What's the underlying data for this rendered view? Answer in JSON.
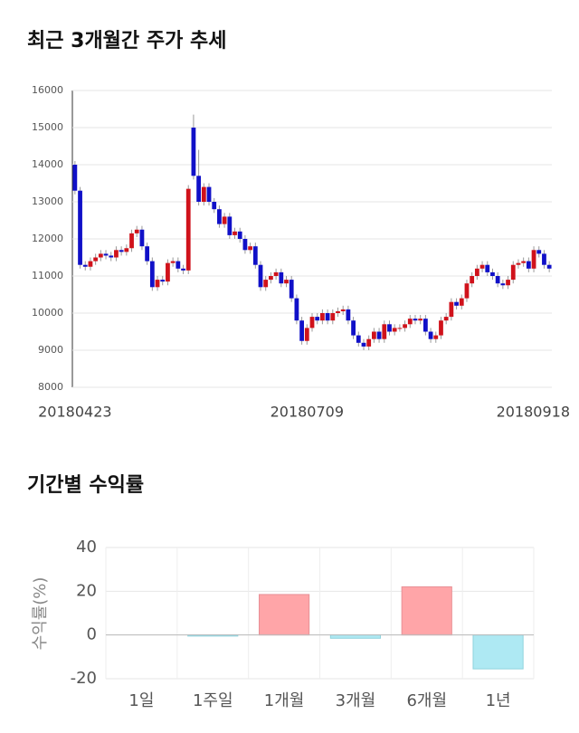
{
  "chart_data": [
    {
      "type": "candlestick",
      "title": "최근 3개월간 주가 추세",
      "categories": [
        "20180423",
        null,
        null,
        null,
        null,
        null,
        null,
        null,
        null,
        null,
        null,
        null,
        null,
        null,
        null,
        null,
        null,
        null,
        null,
        null,
        null,
        null,
        null,
        null,
        null,
        null,
        null,
        null,
        null,
        null,
        null,
        null,
        null,
        null,
        null,
        null,
        null,
        null,
        null,
        null,
        null,
        null,
        null,
        null,
        null,
        "20180709",
        null,
        null,
        null,
        null,
        null,
        null,
        null,
        null,
        null,
        null,
        null,
        null,
        null,
        null,
        null,
        null,
        null,
        null,
        null,
        null,
        null,
        null,
        null,
        null,
        null,
        null,
        null,
        null,
        null,
        null,
        null,
        null,
        null,
        null,
        null,
        null,
        null,
        null,
        null,
        null,
        null,
        null,
        null,
        null,
        null,
        null,
        "20180918"
      ],
      "open": [
        14000,
        13300,
        11300,
        11250,
        11400,
        11500,
        11600,
        11550,
        11500,
        11700,
        11650,
        11750,
        12150,
        12250,
        11800,
        11400,
        10700,
        10900,
        10850,
        11350,
        11400,
        11200,
        11150,
        15000,
        13700,
        13000,
        13400,
        13000,
        12800,
        12400,
        12600,
        12100,
        12200,
        12000,
        11700,
        11800,
        11300,
        10700,
        10900,
        11000,
        11100,
        10800,
        10900,
        10400,
        9800,
        9250,
        9600,
        9900,
        9800,
        10000,
        9800,
        10000,
        10050,
        10100,
        9800,
        9400,
        9200,
        9100,
        9300,
        9500,
        9300,
        9700,
        9500,
        9600,
        9600,
        9700,
        9850,
        9800,
        9850,
        9500,
        9300,
        9400,
        9800,
        9900,
        10300,
        10200,
        10400,
        10800,
        11000,
        11200,
        11300,
        11100,
        11000,
        10800,
        10750,
        10900,
        11300,
        11350,
        11400,
        11200,
        11700,
        11600,
        11300
      ],
      "high": [
        14100,
        13400,
        11400,
        11500,
        11600,
        11700,
        11700,
        11650,
        11800,
        11800,
        11850,
        12250,
        12350,
        12350,
        11900,
        11500,
        11000,
        11000,
        11450,
        11500,
        11500,
        11300,
        13450,
        15350,
        14400,
        13500,
        13500,
        13100,
        12900,
        12700,
        12700,
        12300,
        12300,
        12100,
        11900,
        11900,
        11400,
        11000,
        11100,
        11200,
        11200,
        11000,
        11000,
        10500,
        9900,
        9700,
        10000,
        10000,
        10100,
        10100,
        10100,
        10150,
        10200,
        10200,
        9900,
        9500,
        9300,
        9400,
        9600,
        9600,
        9800,
        9800,
        9700,
        9700,
        9800,
        9950,
        9950,
        9950,
        9950,
        9600,
        9500,
        9900,
        10000,
        10400,
        10400,
        10500,
        10900,
        11100,
        11300,
        11400,
        11400,
        11200,
        11100,
        10900,
        11000,
        11400,
        11450,
        11500,
        11500,
        11800,
        11800,
        11700,
        11400
      ],
      "low": [
        13200,
        11200,
        11150,
        11150,
        11300,
        11400,
        11450,
        11400,
        11400,
        11550,
        11550,
        11650,
        12050,
        11700,
        11300,
        10600,
        10600,
        10750,
        10750,
        11250,
        11100,
        11050,
        11050,
        13600,
        12900,
        12900,
        12900,
        12700,
        12300,
        12300,
        12000,
        12000,
        11900,
        11600,
        11600,
        11200,
        10600,
        10600,
        10800,
        10900,
        10700,
        10700,
        10300,
        9700,
        9150,
        9150,
        9500,
        9700,
        9700,
        9700,
        9700,
        9900,
        9950,
        9700,
        9300,
        9100,
        9000,
        9000,
        9200,
        9200,
        9200,
        9400,
        9400,
        9500,
        9500,
        9600,
        9700,
        9700,
        9400,
        9200,
        9200,
        9300,
        9700,
        9800,
        10100,
        10100,
        10300,
        10700,
        10900,
        11100,
        11000,
        10900,
        10700,
        10650,
        10650,
        10800,
        11200,
        11250,
        11100,
        11100,
        11500,
        11200,
        11100
      ],
      "close": [
        13300,
        11300,
        11250,
        11400,
        11500,
        11600,
        11550,
        11500,
        11700,
        11650,
        11750,
        12150,
        12250,
        11800,
        11400,
        10700,
        10900,
        10850,
        11350,
        11400,
        11200,
        11150,
        13350,
        13700,
        13000,
        13400,
        13000,
        12800,
        12400,
        12600,
        12100,
        12200,
        12000,
        11700,
        11800,
        11300,
        10700,
        10900,
        11000,
        11100,
        10800,
        10900,
        10400,
        9800,
        9250,
        9600,
        9900,
        9800,
        10000,
        9800,
        10000,
        10050,
        10100,
        9800,
        9400,
        9200,
        9100,
        9300,
        9500,
        9300,
        9700,
        9500,
        9600,
        9600,
        9700,
        9850,
        9800,
        9850,
        9500,
        9300,
        9400,
        9800,
        9900,
        10300,
        10200,
        10400,
        10800,
        11000,
        11200,
        11300,
        11100,
        11000,
        10800,
        10750,
        10900,
        11300,
        11350,
        11400,
        11200,
        11700,
        11600,
        11300,
        11200
      ],
      "up_color": "#d0121b",
      "down_color": "#1010c8",
      "ylim": [
        8000,
        16000
      ],
      "yticks": [
        8000,
        9000,
        10000,
        11000,
        12000,
        13000,
        14000,
        15000,
        16000
      ],
      "grid": true
    },
    {
      "type": "bar",
      "title": "기간별 수익률",
      "ylabel": "수익률(%)",
      "categories": [
        "1일",
        "1주일",
        "1개월",
        "3개월",
        "6개월",
        "1년"
      ],
      "values": [
        0,
        -0.5,
        18.5,
        -1.5,
        22,
        -15.5
      ],
      "positive_color": "#ffa5a8",
      "negative_color": "#aee9f3",
      "ylim": [
        -20,
        40
      ],
      "yticks": [
        -20,
        0,
        20,
        40
      ],
      "grid": true
    }
  ]
}
